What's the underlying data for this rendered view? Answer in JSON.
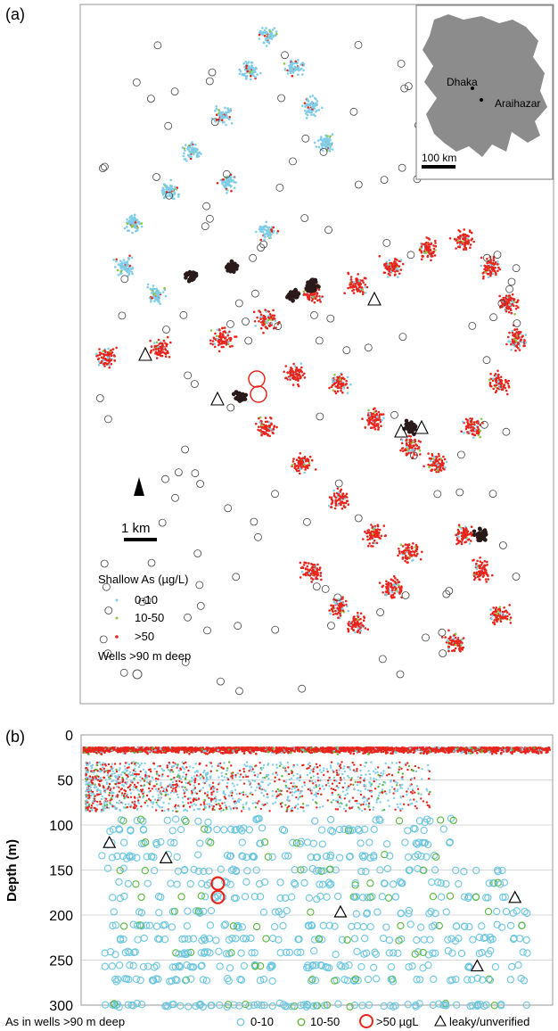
{
  "panels": {
    "a_label": "(a)",
    "b_label": "(b)"
  },
  "map": {
    "inset": {
      "labels": [
        "Dhaka",
        "Araihazar"
      ],
      "scale_label": "100 km"
    },
    "scale_label": "1 km",
    "north_arrow": "north-arrow-icon",
    "legend": {
      "title": "Shallow As (µg/L)",
      "items": [
        {
          "label": "0-10",
          "color": "#7fcde8"
        },
        {
          "label": "10-50",
          "color": "#8dc63f"
        },
        {
          "label": ">50",
          "color": "#e8251d"
        }
      ],
      "deep_wells_label": "Wells >90 m deep",
      "deep_well_symbol": "circle"
    },
    "leaky_wells_count": 6
  },
  "chart_data": {
    "type": "scatter",
    "title": "",
    "xlabel": "",
    "ylabel": "Depth (m)",
    "ylim": [
      300,
      0
    ],
    "yticks": [
      0,
      50,
      100,
      150,
      200,
      250,
      300
    ],
    "grid": true,
    "legend_position": "bottom",
    "legend": {
      "prefix": "As in wells >90 m deep",
      "items": [
        {
          "label": "0-10",
          "color": "#6cc6e0",
          "marker": "circle"
        },
        {
          "label": "10-50",
          "color": "#5aab2e",
          "marker": "circle"
        },
        {
          "label": ">50 µgL",
          "color": "#e8251d",
          "marker": "circle-large"
        },
        {
          "label": "leaky/unverified",
          "color": "#000000",
          "marker": "triangle"
        }
      ]
    },
    "series": [
      {
        "name": "leaky/unverified",
        "marker": "triangle",
        "x": [
          0.06,
          0.18,
          0.55,
          0.84,
          0.92
        ],
        "y": [
          120,
          137,
          197,
          257,
          181
        ]
      },
      {
        "name": ">50 µgL",
        "marker": "circle-large",
        "x": [
          0.29,
          0.29
        ],
        "y": [
          165,
          180
        ]
      }
    ]
  }
}
